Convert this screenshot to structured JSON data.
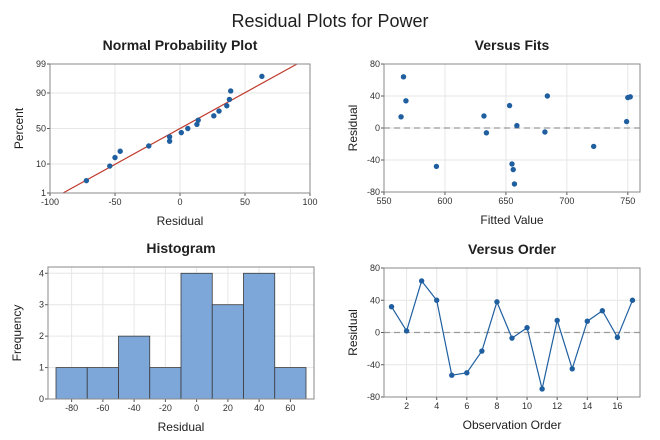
{
  "title": "Residual Plots for Power",
  "colors": {
    "marker": "#1f5fa0",
    "fit_line": "#c0392b",
    "bar_fill": "#7da7d9",
    "bar_edge": "#3a3a3a",
    "grid": "#e6e6e6",
    "zero_line": "#9a9a9a"
  },
  "chart_data": [
    {
      "type": "scatter",
      "title": "Normal Probability Plot",
      "xlabel": "Residual",
      "ylabel": "Percent",
      "xlim": [
        -100,
        100
      ],
      "x_ticks": [
        -100,
        -50,
        0,
        50,
        100
      ],
      "y_scale": "normal-probability",
      "y_ticks": [
        1,
        10,
        50,
        90,
        99
      ],
      "grid": true,
      "reference_line": {
        "from": [
          -90,
          1
        ],
        "to": [
          90,
          99
        ]
      },
      "points": [
        {
          "x": -72,
          "y": 3
        },
        {
          "x": -54,
          "y": 8.8
        },
        {
          "x": -50,
          "y": 14.7
        },
        {
          "x": -46,
          "y": 20.6
        },
        {
          "x": -24,
          "y": 26.5
        },
        {
          "x": -8,
          "y": 32.4
        },
        {
          "x": -8,
          "y": 38.2
        },
        {
          "x": 1,
          "y": 44.1
        },
        {
          "x": 6,
          "y": 50
        },
        {
          "x": 13,
          "y": 55.9
        },
        {
          "x": 14,
          "y": 61.8
        },
        {
          "x": 26,
          "y": 67.6
        },
        {
          "x": 30,
          "y": 73.5
        },
        {
          "x": 36,
          "y": 79.4
        },
        {
          "x": 38,
          "y": 85.3
        },
        {
          "x": 39,
          "y": 91.2
        },
        {
          "x": 63,
          "y": 97
        }
      ]
    },
    {
      "type": "scatter",
      "title": "Versus Fits",
      "xlabel": "Fitted Value",
      "ylabel": "Residual",
      "xlim": [
        550,
        760
      ],
      "ylim": [
        -80,
        80
      ],
      "x_ticks": [
        550,
        600,
        650,
        700,
        750
      ],
      "y_ticks": [
        -80,
        -40,
        0,
        40,
        80
      ],
      "grid": true,
      "reference_line_y": 0,
      "points": [
        {
          "x": 564,
          "y": 14
        },
        {
          "x": 566,
          "y": 64
        },
        {
          "x": 568,
          "y": 34
        },
        {
          "x": 593,
          "y": -48
        },
        {
          "x": 632,
          "y": 15
        },
        {
          "x": 634,
          "y": -6
        },
        {
          "x": 653,
          "y": 28
        },
        {
          "x": 655,
          "y": -45
        },
        {
          "x": 656,
          "y": -52
        },
        {
          "x": 657,
          "y": -70
        },
        {
          "x": 659,
          "y": 3
        },
        {
          "x": 682,
          "y": -5
        },
        {
          "x": 684,
          "y": 40
        },
        {
          "x": 722,
          "y": -23
        },
        {
          "x": 749,
          "y": 8
        },
        {
          "x": 750,
          "y": 38
        },
        {
          "x": 752,
          "y": 39
        }
      ]
    },
    {
      "type": "bar",
      "title": "Histogram",
      "xlabel": "Residual",
      "ylabel": "Frequency",
      "bin_edges": [
        -90,
        -70,
        -50,
        -30,
        -10,
        10,
        30,
        50,
        70
      ],
      "values": [
        1,
        1,
        2,
        1,
        4,
        3,
        4,
        1
      ],
      "x_ticks": [
        -80,
        -60,
        -40,
        -20,
        0,
        20,
        40,
        60
      ],
      "ylim": [
        0,
        4.2
      ],
      "y_ticks": [
        0,
        1,
        2,
        3,
        4
      ],
      "grid": true
    },
    {
      "type": "line",
      "title": "Versus Order",
      "xlabel": "Observation Order",
      "ylabel": "Residual",
      "xlim": [
        0.5,
        17.5
      ],
      "ylim": [
        -80,
        80
      ],
      "x_ticks": [
        2,
        4,
        6,
        8,
        10,
        12,
        14,
        16
      ],
      "y_ticks": [
        -80,
        -40,
        0,
        40,
        80
      ],
      "grid": true,
      "reference_line_y": 0,
      "x": [
        1,
        2,
        3,
        4,
        5,
        6,
        7,
        8,
        9,
        10,
        11,
        12,
        13,
        14,
        15,
        16,
        17
      ],
      "values": [
        32,
        2,
        64,
        40,
        -53,
        -50,
        -23,
        38,
        -7,
        6,
        -70,
        15,
        -45,
        14,
        27,
        -6,
        40
      ]
    }
  ]
}
